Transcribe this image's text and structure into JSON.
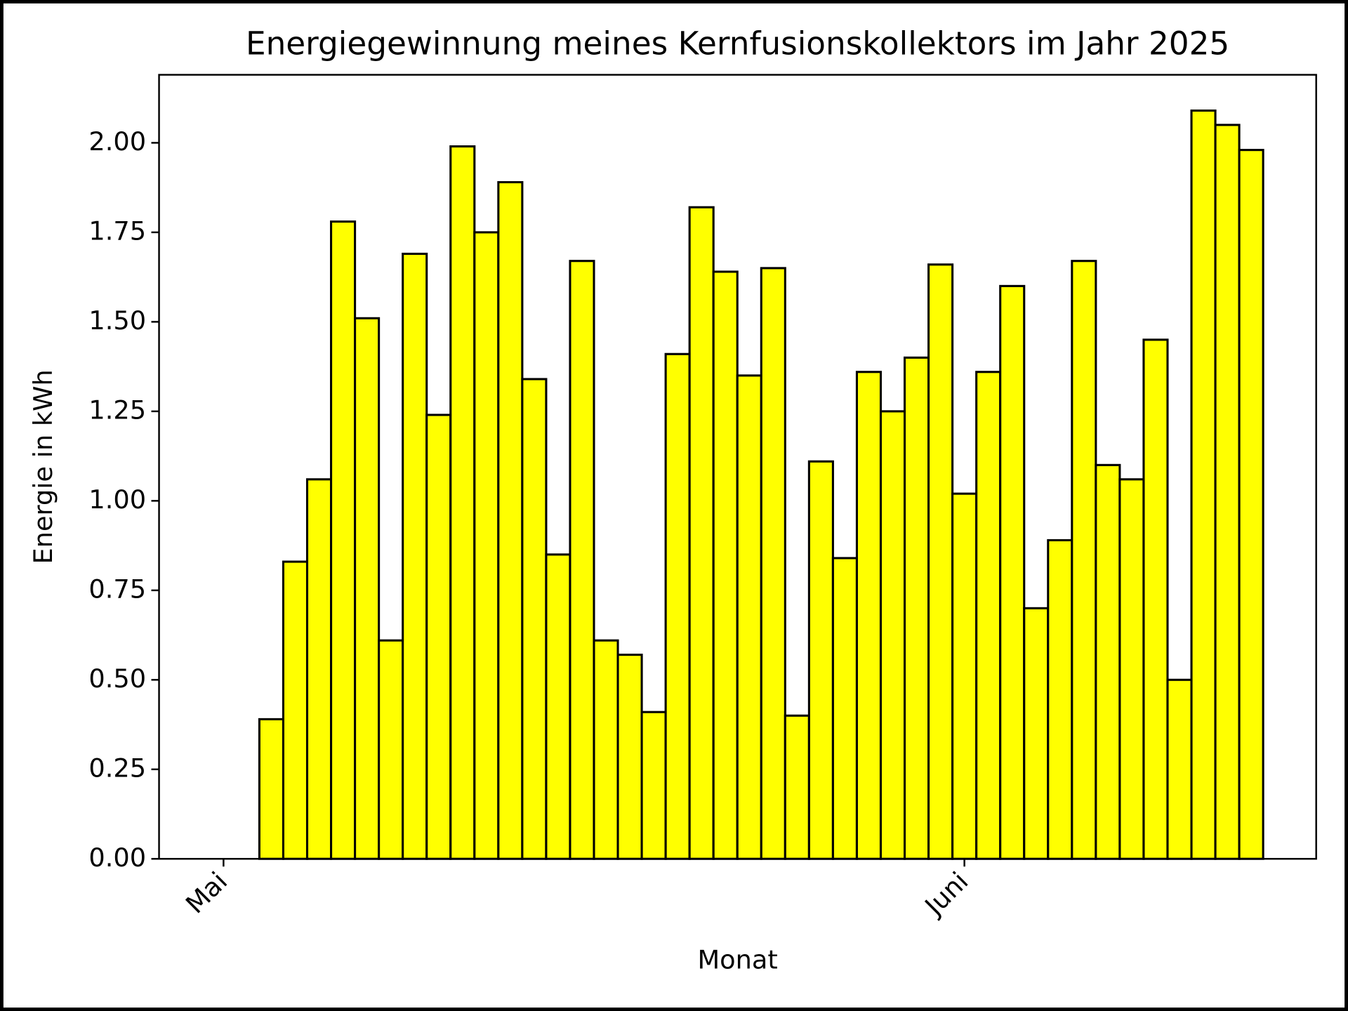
{
  "chart_data": {
    "type": "bar",
    "title": "Energiegewinnung meines Kernfusionskollektors im Jahr 2025",
    "xlabel": "Monat",
    "ylabel": "Energie in kWh",
    "categories": [
      "Mai",
      null,
      null,
      null,
      null,
      null,
      null,
      null,
      null,
      null,
      null,
      null,
      null,
      null,
      null,
      null,
      null,
      null,
      null,
      null,
      null,
      null,
      null,
      null,
      null,
      null,
      null,
      null,
      null,
      null,
      null,
      "Juni",
      null,
      null,
      null,
      null,
      null,
      null,
      null,
      null,
      null,
      null,
      null,
      null
    ],
    "values": [
      0,
      0,
      0.39,
      0.83,
      1.06,
      1.78,
      1.51,
      0.61,
      1.69,
      1.24,
      1.99,
      1.75,
      1.89,
      1.34,
      0.85,
      1.67,
      0.61,
      0.57,
      0.41,
      1.41,
      1.82,
      1.64,
      1.35,
      1.65,
      0.4,
      1.11,
      0.84,
      1.36,
      1.25,
      1.4,
      1.66,
      1.02,
      1.36,
      1.6,
      0.7,
      0.89,
      1.67,
      1.1,
      1.06,
      1.45,
      0.5,
      2.09,
      2.05,
      1.98
    ],
    "color": "#ffff00",
    "ylim": [
      0,
      2.19
    ],
    "yticks": [
      {
        "value": 0,
        "label": "0.00"
      },
      {
        "value": 0.25,
        "label": "0.25"
      },
      {
        "value": 0.5,
        "label": "0.50"
      },
      {
        "value": 0.75,
        "label": "0.75"
      },
      {
        "value": 1,
        "label": "1.00"
      },
      {
        "value": 1.25,
        "label": "1.25"
      },
      {
        "value": 1.5,
        "label": "1.50"
      },
      {
        "value": 1.75,
        "label": "1.75"
      },
      {
        "value": 2,
        "label": "2.00"
      }
    ],
    "grid": false
  }
}
